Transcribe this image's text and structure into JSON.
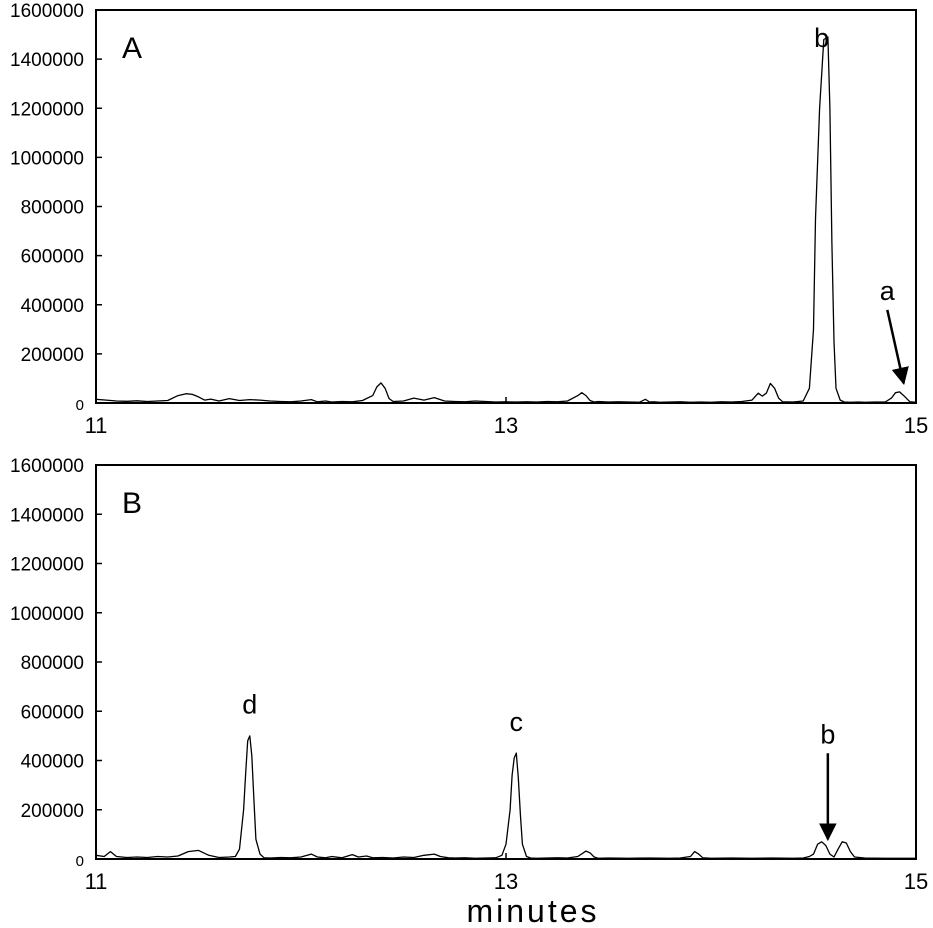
{
  "figure": {
    "x_axis_label": "minutes"
  },
  "chart_data": [
    {
      "type": "line",
      "panel_label": "A",
      "xlim": [
        11,
        15
      ],
      "ylim": [
        0,
        1600000
      ],
      "x_ticks": [
        11,
        13,
        15
      ],
      "y_ticks": [
        0,
        200000,
        400000,
        600000,
        800000,
        1000000,
        1200000,
        1400000,
        1600000
      ],
      "grid": false,
      "series": [
        {
          "x": [
            11.0,
            11.05,
            11.1,
            11.15,
            11.2,
            11.25,
            11.3,
            11.35,
            11.4,
            11.44,
            11.47,
            11.5,
            11.53,
            11.56,
            11.6,
            11.65,
            11.7,
            11.75,
            11.8,
            11.85,
            11.9,
            11.95,
            12.0,
            12.05,
            12.08,
            12.12,
            12.15,
            12.2,
            12.25,
            12.3,
            12.35,
            12.37,
            12.39,
            12.41,
            12.43,
            12.45,
            12.5,
            12.55,
            12.6,
            12.65,
            12.7,
            12.75,
            12.8,
            12.85,
            12.9,
            12.95,
            13.0,
            13.05,
            13.1,
            13.15,
            13.2,
            13.25,
            13.3,
            13.35,
            13.37,
            13.39,
            13.41,
            13.43,
            13.45,
            13.5,
            13.55,
            13.6,
            13.65,
            13.68,
            13.7,
            13.72,
            13.75,
            13.8,
            13.85,
            13.9,
            13.95,
            14.0,
            14.05,
            14.1,
            14.15,
            14.2,
            14.23,
            14.25,
            14.27,
            14.29,
            14.31,
            14.33,
            14.35,
            14.4,
            14.45,
            14.48,
            14.5,
            14.51,
            14.53,
            14.55,
            14.57,
            14.58,
            14.59,
            14.6,
            14.61,
            14.63,
            14.65,
            14.68,
            14.72,
            14.75,
            14.8,
            14.85,
            14.88,
            14.9,
            14.92,
            14.94,
            14.97,
            15.0
          ],
          "y": [
            15000,
            12000,
            8000,
            7000,
            9000,
            6000,
            8000,
            10000,
            30000,
            38000,
            35000,
            25000,
            12000,
            16000,
            8000,
            18000,
            10000,
            14000,
            12000,
            8000,
            6000,
            5000,
            8000,
            14000,
            5000,
            8000,
            4000,
            6000,
            5000,
            10000,
            30000,
            65000,
            82000,
            60000,
            18000,
            6000,
            8000,
            20000,
            12000,
            22000,
            8000,
            6000,
            5000,
            8000,
            6000,
            4000,
            5000,
            4000,
            5000,
            4000,
            6000,
            5000,
            8000,
            30000,
            42000,
            30000,
            10000,
            4000,
            6000,
            4000,
            5000,
            4000,
            3000,
            15000,
            4000,
            5000,
            3000,
            4000,
            5000,
            3000,
            4000,
            3000,
            5000,
            4000,
            6000,
            12000,
            40000,
            28000,
            40000,
            80000,
            60000,
            20000,
            5000,
            4000,
            8000,
            60000,
            300000,
            750000,
            1200000,
            1480000,
            1490000,
            1200000,
            650000,
            250000,
            60000,
            12000,
            4000,
            3000,
            4000,
            3000,
            4000,
            4000,
            20000,
            42000,
            45000,
            30000,
            5000,
            3000
          ]
        }
      ],
      "annotations": [
        {
          "text": "b",
          "x": 14.54,
          "y": 1450000
        },
        {
          "text": "a",
          "x": 14.86,
          "y": 420000,
          "arrow_to": [
            14.94,
            80000
          ]
        }
      ]
    },
    {
      "type": "line",
      "panel_label": "B",
      "xlim": [
        11,
        15
      ],
      "ylim": [
        0,
        1600000
      ],
      "x_ticks": [
        11,
        13,
        15
      ],
      "y_ticks": [
        0,
        200000,
        400000,
        600000,
        800000,
        1000000,
        1200000,
        1400000,
        1600000
      ],
      "grid": false,
      "series": [
        {
          "x": [
            11.0,
            11.04,
            11.07,
            11.1,
            11.15,
            11.2,
            11.25,
            11.3,
            11.35,
            11.4,
            11.45,
            11.5,
            11.55,
            11.6,
            11.65,
            11.68,
            11.7,
            11.72,
            11.73,
            11.74,
            11.75,
            11.76,
            11.77,
            11.78,
            11.8,
            11.82,
            11.85,
            11.9,
            11.95,
            12.0,
            12.05,
            12.08,
            12.12,
            12.15,
            12.2,
            12.25,
            12.28,
            12.32,
            12.35,
            12.4,
            12.45,
            12.5,
            12.55,
            12.6,
            12.65,
            12.68,
            12.72,
            12.75,
            12.8,
            12.85,
            12.9,
            12.95,
            12.98,
            13.0,
            13.02,
            13.03,
            13.04,
            13.05,
            13.06,
            13.07,
            13.08,
            13.1,
            13.12,
            13.15,
            13.2,
            13.25,
            13.3,
            13.35,
            13.39,
            13.41,
            13.43,
            13.45,
            13.5,
            13.6,
            13.7,
            13.8,
            13.85,
            13.9,
            13.92,
            13.94,
            13.96,
            14.0,
            14.1,
            14.2,
            14.3,
            14.4,
            14.45,
            14.48,
            14.5,
            14.52,
            14.54,
            14.56,
            14.58,
            14.6,
            14.62,
            14.64,
            14.66,
            14.68,
            14.7,
            14.75,
            14.85,
            15.0
          ],
          "y": [
            15000,
            10000,
            30000,
            10000,
            6000,
            8000,
            6000,
            10000,
            8000,
            12000,
            30000,
            35000,
            15000,
            6000,
            8000,
            10000,
            40000,
            200000,
            350000,
            480000,
            500000,
            420000,
            250000,
            80000,
            20000,
            5000,
            4000,
            6000,
            5000,
            8000,
            20000,
            8000,
            5000,
            10000,
            5000,
            18000,
            8000,
            12000,
            5000,
            6000,
            4000,
            8000,
            6000,
            15000,
            20000,
            10000,
            5000,
            4000,
            5000,
            3000,
            4000,
            5000,
            15000,
            60000,
            200000,
            340000,
            410000,
            430000,
            330000,
            180000,
            60000,
            10000,
            4000,
            3000,
            4000,
            5000,
            4000,
            10000,
            32000,
            25000,
            8000,
            3000,
            4000,
            3000,
            4000,
            3000,
            4000,
            10000,
            30000,
            20000,
            5000,
            3000,
            4000,
            3000,
            4000,
            3000,
            4000,
            10000,
            20000,
            60000,
            70000,
            55000,
            20000,
            8000,
            40000,
            70000,
            65000,
            30000,
            8000,
            4000,
            3000,
            3000
          ]
        }
      ],
      "annotations": [
        {
          "text": "d",
          "x": 11.75,
          "y": 590000
        },
        {
          "text": "c",
          "x": 13.05,
          "y": 520000
        },
        {
          "text": "b",
          "x": 14.57,
          "y": 470000,
          "arrow_to": [
            14.57,
            80000
          ]
        }
      ]
    }
  ]
}
